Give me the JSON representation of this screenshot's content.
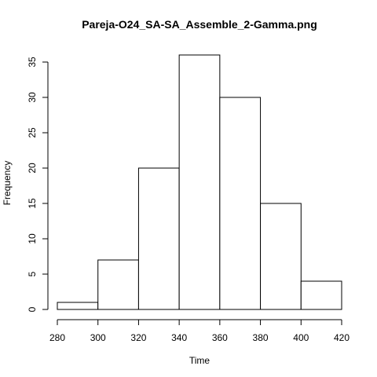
{
  "chart_data": {
    "type": "bar",
    "subtype": "histogram",
    "title": "Pareja-O24_SA-SA_Assemble_2-Gamma.png",
    "xlabel": "Time",
    "ylabel": "Frequency",
    "bins": [
      {
        "start": 280,
        "end": 300,
        "count": 1
      },
      {
        "start": 300,
        "end": 320,
        "count": 7
      },
      {
        "start": 320,
        "end": 340,
        "count": 20
      },
      {
        "start": 340,
        "end": 360,
        "count": 36
      },
      {
        "start": 360,
        "end": 380,
        "count": 30
      },
      {
        "start": 380,
        "end": 400,
        "count": 15
      },
      {
        "start": 400,
        "end": 420,
        "count": 4
      }
    ],
    "xlim": [
      280,
      420
    ],
    "ylim": [
      0,
      36
    ],
    "x_ticks": [
      "280",
      "300",
      "320",
      "340",
      "360",
      "380",
      "400",
      "420"
    ],
    "y_ticks": [
      "0",
      "5",
      "10",
      "15",
      "20",
      "25",
      "30",
      "35"
    ],
    "bar_fill": "#ffffff",
    "bar_stroke": "#000000",
    "grid": false,
    "legend": "none"
  }
}
